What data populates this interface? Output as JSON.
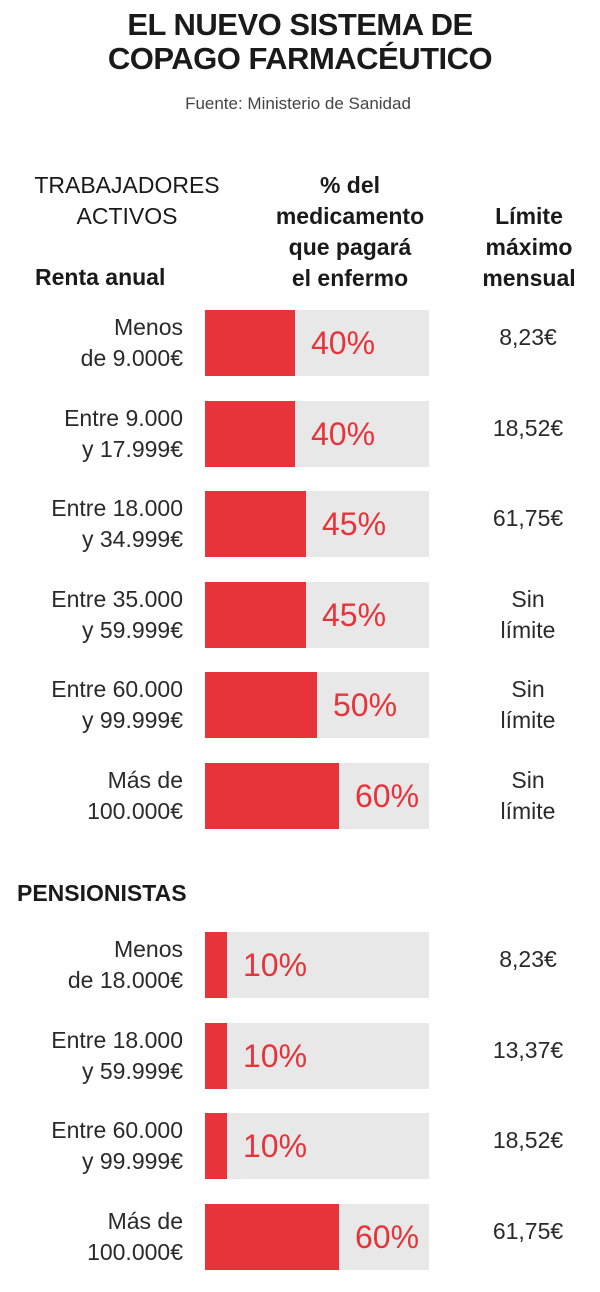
{
  "title_lines": [
    "EL NUEVO SISTEMA DE",
    "COPAGO FARMACÉUTICO"
  ],
  "source": "Fuente:  Ministerio de Sanidad",
  "headers": {
    "group1_lines": [
      "TRABAJADORES",
      "ACTIVOS"
    ],
    "income_label": "Renta anual",
    "pct_lines": [
      "% del",
      "medicamento",
      "que pagará",
      "el enfermo"
    ],
    "limit_lines": [
      "Límite",
      "máximo",
      "mensual"
    ],
    "group2": "PENSIONISTAS"
  },
  "colors": {
    "bar": "#e8333b",
    "track": "#e8e8e8"
  },
  "chart_data": {
    "type": "bar",
    "orientation": "horizontal",
    "xlim": [
      0,
      100
    ],
    "groups": [
      {
        "name": "TRABAJADORES ACTIVOS",
        "rows": [
          {
            "label_lines": [
              "Menos",
              "de 9.000€"
            ],
            "value": 40,
            "value_label": "40%",
            "limit_lines": [
              "8,23€"
            ]
          },
          {
            "label_lines": [
              "Entre 9.000",
              "y 17.999€"
            ],
            "value": 40,
            "value_label": "40%",
            "limit_lines": [
              "18,52€"
            ]
          },
          {
            "label_lines": [
              "Entre 18.000",
              "y 34.999€"
            ],
            "value": 45,
            "value_label": "45%",
            "limit_lines": [
              "61,75€"
            ]
          },
          {
            "label_lines": [
              "Entre 35.000",
              "y 59.999€"
            ],
            "value": 45,
            "value_label": "45%",
            "limit_lines": [
              "Sin",
              "límite"
            ]
          },
          {
            "label_lines": [
              "Entre 60.000",
              "y 99.999€"
            ],
            "value": 50,
            "value_label": "50%",
            "limit_lines": [
              "Sin",
              "límite"
            ]
          },
          {
            "label_lines": [
              "Más de",
              "100.000€"
            ],
            "value": 60,
            "value_label": "60%",
            "limit_lines": [
              "Sin",
              "límite"
            ]
          }
        ]
      },
      {
        "name": "PENSIONISTAS",
        "rows": [
          {
            "label_lines": [
              "Menos",
              "de 18.000€"
            ],
            "value": 10,
            "value_label": "10%",
            "limit_lines": [
              "8,23€"
            ]
          },
          {
            "label_lines": [
              "Entre 18.000",
              "y 59.999€"
            ],
            "value": 10,
            "value_label": "10%",
            "limit_lines": [
              "13,37€"
            ]
          },
          {
            "label_lines": [
              "Entre 60.000",
              "y 99.999€"
            ],
            "value": 10,
            "value_label": "10%",
            "limit_lines": [
              "18,52€"
            ]
          },
          {
            "label_lines": [
              "Más de",
              "100.000€"
            ],
            "value": 60,
            "value_label": "60%",
            "limit_lines": [
              "61,75€"
            ]
          }
        ]
      }
    ]
  }
}
